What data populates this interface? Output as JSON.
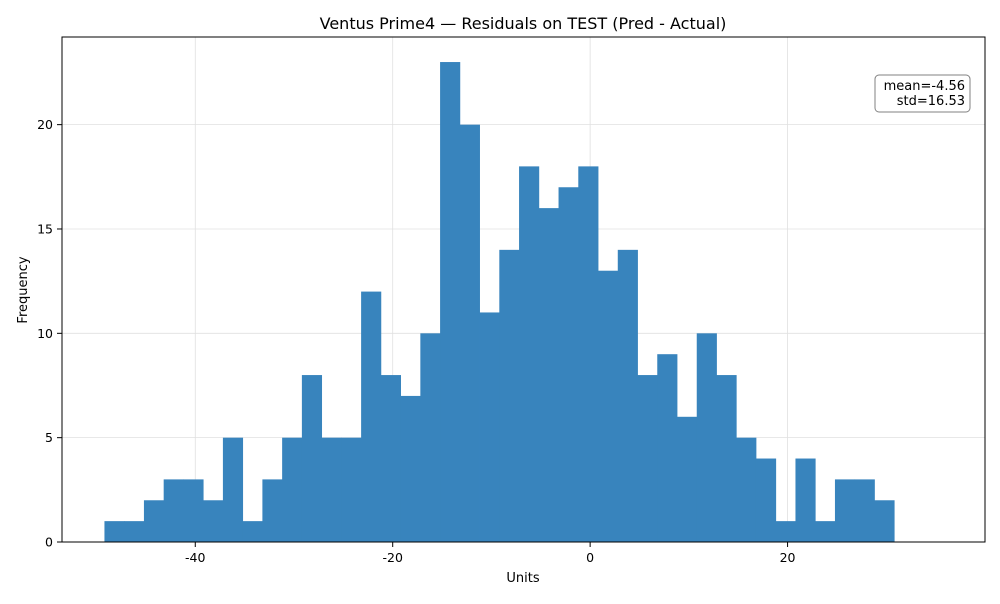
{
  "chart_data": {
    "type": "bar",
    "title": "Ventus Prime4 — Residuals on TEST (Pred - Actual)",
    "xlabel": "Units",
    "ylabel": "Frequency",
    "xlim": [
      -53.5,
      40
    ],
    "ylim": [
      0,
      24.2
    ],
    "bin_width": 2.0,
    "bin_start": -49.2,
    "counts": [
      1,
      1,
      2,
      3,
      3,
      2,
      5,
      1,
      3,
      5,
      8,
      5,
      5,
      12,
      8,
      7,
      10,
      23,
      20,
      11,
      14,
      18,
      16,
      17,
      18,
      13,
      14,
      8,
      9,
      6,
      10,
      8,
      5,
      4,
      1,
      4,
      1,
      3,
      3,
      2
    ],
    "x_ticks": [
      -40,
      -20,
      0,
      20
    ],
    "y_ticks": [
      0,
      5,
      10,
      15,
      20
    ],
    "grid": true,
    "bar_color": "#3884bd",
    "annotation": {
      "placement": "top-right",
      "lines": [
        "mean=-4.56",
        "std=16.53"
      ]
    }
  }
}
